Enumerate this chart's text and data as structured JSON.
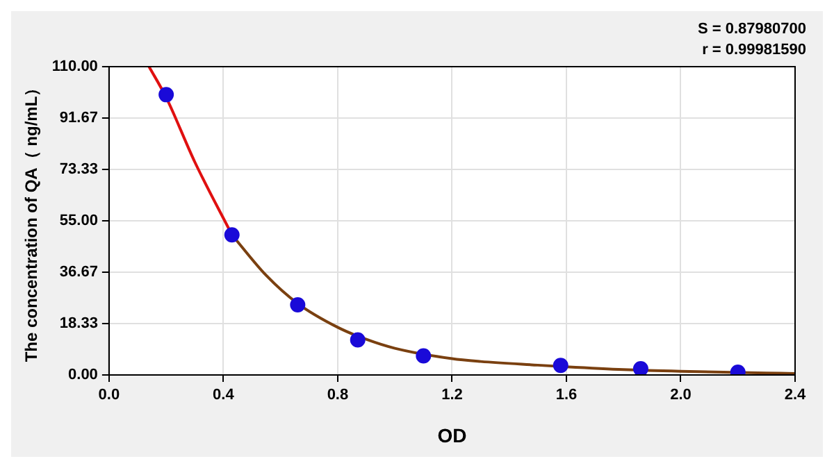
{
  "chart_data": {
    "type": "scatter",
    "xlabel": "OD",
    "ylabel": "The concentration of QA（ ng/mL）",
    "annotations": [
      "S = 0.87980700",
      "r = 0.99981590"
    ],
    "xlim": [
      0,
      2.4
    ],
    "xticks": [
      {
        "value": 0,
        "label": "0.0"
      },
      {
        "value": 0.4,
        "label": "0.4"
      },
      {
        "value": 0.8,
        "label": "0.8"
      },
      {
        "value": 1.2,
        "label": "1.2"
      },
      {
        "value": 1.6,
        "label": "1.6"
      },
      {
        "value": 2.0,
        "label": "2.0"
      },
      {
        "value": 2.4,
        "label": "2.4"
      }
    ],
    "ylim": [
      0,
      110
    ],
    "yticks": [
      {
        "value": 0,
        "label": "0.00"
      },
      {
        "value": 18.33,
        "label": "18.33"
      },
      {
        "value": 36.67,
        "label": "36.67"
      },
      {
        "value": 55,
        "label": "55.00"
      },
      {
        "value": 73.33,
        "label": "73.33"
      },
      {
        "value": 91.67,
        "label": "91.67"
      },
      {
        "value": 110,
        "label": "110.00"
      }
    ],
    "grid": true,
    "legend": false,
    "series": [
      {
        "color": "#1a0ad8",
        "marker": "circle",
        "x": [
          0.2,
          0.43,
          0.66,
          0.87,
          1.1,
          1.58,
          1.86,
          2.2
        ],
        "values": [
          100,
          50,
          25,
          12.5,
          6.8,
          3.4,
          2.2,
          1
        ]
      },
      {
        "type": "line",
        "color": "#e01010",
        "marker": "none",
        "x": [
          0.14,
          0.2,
          0.3,
          0.43
        ],
        "values": [
          110,
          99,
          76,
          50
        ]
      },
      {
        "type": "line",
        "color": "#7a4010",
        "marker": "none",
        "x": [
          0.43,
          0.55,
          0.66,
          0.8,
          0.9,
          1.0,
          1.2,
          1.3,
          1.5,
          1.6,
          1.8,
          2.0,
          2.3,
          2.4
        ],
        "values": [
          50,
          35.5,
          25.5,
          17,
          12.7,
          9.5,
          5.8,
          4.8,
          3.5,
          2.9,
          1.9,
          1.3,
          0.7,
          0.5
        ]
      }
    ]
  }
}
